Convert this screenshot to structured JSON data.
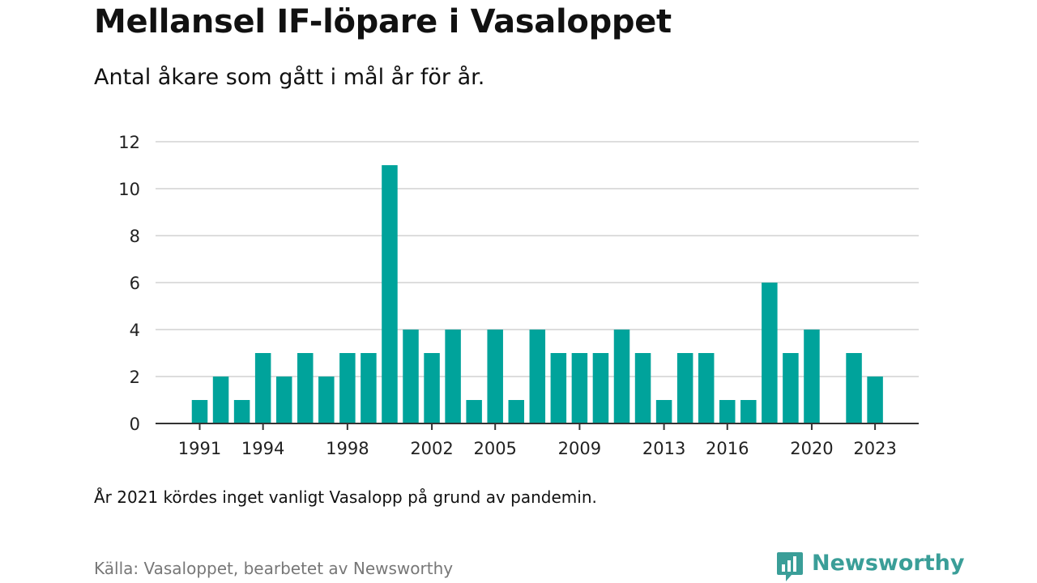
{
  "title": "Mellansel IF-löpare i Vasaloppet",
  "subtitle": "Antal åkare som gått i mål år för år.",
  "note": "År 2021 kördes inget vanligt Vasalopp på grund av pandemin.",
  "source": "Källa: Vasaloppet, bearbetet av Newsworthy",
  "brand": {
    "name": "Newsworthy",
    "icon": "bar-chart-bubble-icon",
    "color": "#3a9e98"
  },
  "chart_data": {
    "type": "bar",
    "bar_color": "#00a39b",
    "grid": true,
    "ylim": [
      0,
      12
    ],
    "yticks": [
      0,
      2,
      4,
      6,
      8,
      10,
      12
    ],
    "xtick_labels": [
      "1991",
      "1994",
      "1998",
      "2002",
      "2005",
      "2009",
      "2013",
      "2016",
      "2020",
      "2023"
    ],
    "categories": [
      "1991",
      "1992",
      "1993",
      "1994",
      "1995",
      "1996",
      "1997",
      "1998",
      "1999",
      "2000",
      "2001",
      "2002",
      "2003",
      "2004",
      "2005",
      "2006",
      "2007",
      "2008",
      "2009",
      "2010",
      "2011",
      "2012",
      "2013",
      "2014",
      "2015",
      "2016",
      "2017",
      "2018",
      "2019",
      "2020",
      "2021",
      "2022",
      "2023"
    ],
    "values": [
      1,
      2,
      1,
      3,
      2,
      3,
      2,
      3,
      3,
      11,
      4,
      3,
      4,
      1,
      4,
      1,
      4,
      3,
      3,
      3,
      4,
      3,
      1,
      3,
      3,
      1,
      1,
      6,
      3,
      4,
      0,
      3,
      2
    ]
  }
}
